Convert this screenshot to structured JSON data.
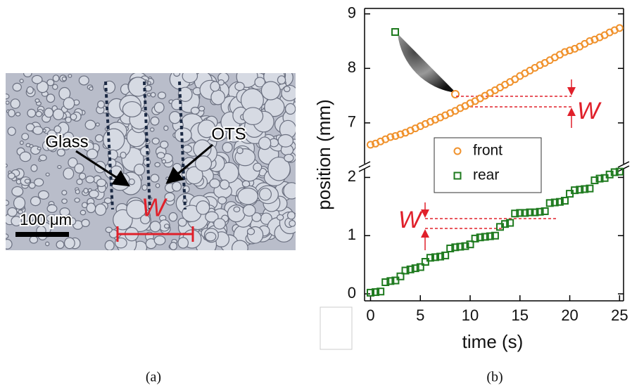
{
  "panel_a": {
    "glass": "Glass",
    "ots": "OTS",
    "scale": "100 μm",
    "width": "W",
    "caption": "(a)"
  },
  "caption_b": "(b)",
  "chart_data": [
    {
      "type": "scatter",
      "ylabel": "position (mm)",
      "annotation": "W",
      "xlim": [
        -0.6,
        25.4
      ],
      "ylim": [
        6.25,
        9.1
      ],
      "yticks": [
        7,
        8,
        9
      ],
      "x": [
        0,
        0.5,
        1,
        1.5,
        2,
        2.5,
        3,
        3.5,
        4,
        4.5,
        5,
        5.5,
        6,
        6.5,
        7,
        7.5,
        8,
        8.5,
        9,
        9.5,
        10,
        10.5,
        11,
        11.5,
        12,
        12.5,
        13,
        13.5,
        14,
        14.5,
        15,
        15.5,
        16,
        16.5,
        17,
        17.5,
        18,
        18.5,
        19,
        19.5,
        20,
        20.5,
        21,
        21.5,
        22,
        22.5,
        23,
        23.5,
        24,
        24.5,
        25
      ],
      "series": [
        {
          "name": "front",
          "color": "#f0922d",
          "marker": "circle",
          "values": [
            6.6,
            6.62,
            6.66,
            6.7,
            6.74,
            6.76,
            6.79,
            6.82,
            6.86,
            6.9,
            6.94,
            6.98,
            7.02,
            7.06,
            7.1,
            7.14,
            7.18,
            7.22,
            7.27,
            7.31,
            7.36,
            7.4,
            7.45,
            7.5,
            7.55,
            7.6,
            7.65,
            7.7,
            7.75,
            7.8,
            7.86,
            7.91,
            7.96,
            8.01,
            8.06,
            8.1,
            8.15,
            8.2,
            8.25,
            8.3,
            8.33,
            8.36,
            8.4,
            8.45,
            8.5,
            8.53,
            8.57,
            8.61,
            8.66,
            8.7,
            8.74
          ]
        }
      ]
    },
    {
      "type": "scatter",
      "xlabel": "time (s)",
      "annotation": "W",
      "xlim": [
        -0.6,
        25.4
      ],
      "ylim": [
        -0.12,
        2.15
      ],
      "yticks": [
        0,
        1,
        2
      ],
      "xticks": [
        0,
        5,
        10,
        15,
        20,
        25
      ],
      "x": [
        0,
        0.5,
        1,
        1.5,
        2,
        2.5,
        3,
        3.5,
        4,
        4.5,
        5,
        5.5,
        6,
        6.5,
        7,
        7.5,
        8,
        8.5,
        9,
        9.5,
        10,
        10.5,
        11,
        11.5,
        12,
        12.5,
        13,
        13.5,
        14,
        14.5,
        15,
        15.5,
        16,
        16.5,
        17,
        17.5,
        18,
        18.5,
        19,
        19.5,
        20,
        20.5,
        21,
        21.5,
        22,
        22.5,
        23,
        23.5,
        24,
        24.5,
        25
      ],
      "series": [
        {
          "name": "rear",
          "color": "#1e7a1e",
          "marker": "square",
          "values": [
            0.02,
            0.03,
            0.04,
            0.2,
            0.22,
            0.23,
            0.3,
            0.4,
            0.42,
            0.44,
            0.46,
            0.55,
            0.62,
            0.63,
            0.64,
            0.66,
            0.78,
            0.8,
            0.81,
            0.82,
            0.85,
            0.95,
            0.97,
            0.98,
            0.99,
            1.0,
            1.15,
            1.2,
            1.22,
            1.38,
            1.39,
            1.39,
            1.4,
            1.4,
            1.41,
            1.42,
            1.56,
            1.57,
            1.58,
            1.6,
            1.72,
            1.78,
            1.79,
            1.8,
            1.81,
            1.95,
            1.98,
            1.99,
            2.05,
            2.09,
            2.1
          ]
        }
      ]
    }
  ]
}
